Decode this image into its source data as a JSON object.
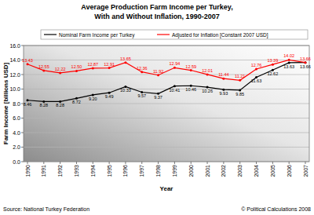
{
  "chart_data": {
    "type": "line",
    "title": "Average Production Farm Income per Turkey,",
    "subtitle": "With and Without Inflation, 1990-2007",
    "x_label": "Year",
    "y_label": "Farm Income [billions USD]",
    "annotations": [
      "Source: National Turkey Federation",
      "© Political Calculations 2008"
    ],
    "categories": [
      "1990",
      "1991",
      "1992",
      "1993",
      "1994",
      "1995",
      "1996",
      "1997",
      "1998",
      "1999",
      "2000",
      "2001",
      "2002",
      "2003",
      "2004",
      "2005",
      "2006",
      "2007"
    ],
    "series": [
      {
        "name": "Nominal Farm Income per Turkey",
        "color": "#000000",
        "marker": "circle",
        "line_style": "solid",
        "values": [
          8.46,
          8.28,
          8.28,
          8.72,
          9.2,
          9.49,
          10.33,
          9.57,
          9.37,
          10.41,
          10.46,
          10.26,
          9.93,
          9.85,
          11.63,
          12.62,
          13.63,
          13.66
        ],
        "value_labels": [
          "8.46",
          "8.28",
          "8.28",
          "8.72",
          "9.20",
          "9.49",
          "10.33",
          "9.57",
          "9.37",
          "10.41",
          "10.46",
          "10.26",
          "9.93",
          "9.85",
          "11.63",
          "12.62",
          "13.63",
          "13.66"
        ]
      },
      {
        "name": "Adjusted for Inflation [Constant 2007 USD]",
        "color": "#ff0000",
        "marker": "circle",
        "line_style": "solid",
        "values": [
          13.43,
          12.55,
          12.22,
          12.5,
          12.87,
          12.91,
          13.65,
          12.36,
          11.92,
          12.94,
          12.59,
          12.01,
          11.44,
          11.21,
          12.76,
          13.39,
          14.02,
          13.66
        ],
        "value_labels": [
          "13.43",
          "12.55",
          "12.22",
          "12.50",
          "12.87",
          "12.91",
          "13.65",
          "12.36",
          "11.92",
          "12.94",
          "12.59",
          "12.01",
          "11.44",
          "11.21",
          "12.76",
          "13.39",
          "14.02",
          "13.66"
        ]
      }
    ],
    "ylim": [
      0,
      16
    ],
    "yticks": [
      {
        "value": 0,
        "label": "0.0"
      },
      {
        "value": 2,
        "label": "2.0"
      },
      {
        "value": 4,
        "label": "4.0"
      },
      {
        "value": 6,
        "label": "6.0"
      },
      {
        "value": 8,
        "label": "8.0"
      },
      {
        "value": 10,
        "label": "10.0"
      },
      {
        "value": 12,
        "label": "12.0"
      },
      {
        "value": 14,
        "label": "14.0"
      },
      {
        "value": 16,
        "label": "16.0"
      }
    ],
    "grid": true,
    "legend": "top",
    "data_labels": true
  }
}
